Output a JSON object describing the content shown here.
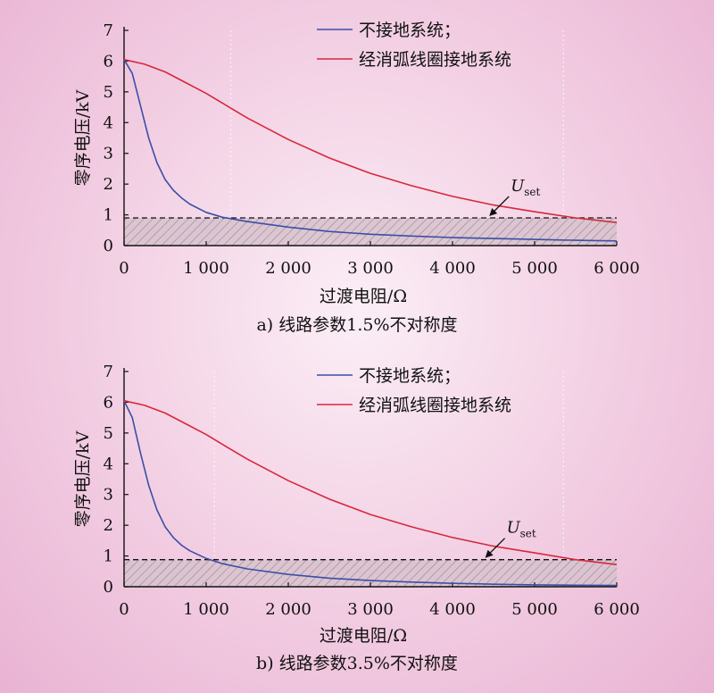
{
  "chart_data": [
    {
      "type": "line",
      "caption": "a) 线路参数1.5%不对称度",
      "xlabel": "过渡电阻/Ω",
      "ylabel": "零序电压/kV",
      "xlim": [
        0,
        6000
      ],
      "ylim": [
        0,
        7
      ],
      "x_ticks": [
        0,
        1000,
        2000,
        3000,
        4000,
        5000,
        6000
      ],
      "x_tick_labels": [
        "0",
        "1 000",
        "2 000",
        "3 000",
        "4 000",
        "5 000",
        "6 000"
      ],
      "y_ticks": [
        0,
        1,
        2,
        3,
        4,
        5,
        6,
        7
      ],
      "threshold": {
        "label": "U",
        "label_sub": "set",
        "value": 0.9,
        "annotation_point": [
          4600,
          1.0
        ]
      },
      "series": [
        {
          "name": "不接地系统；",
          "color": "#3a4fa6",
          "x": [
            0,
            100,
            200,
            300,
            400,
            500,
            600,
            700,
            800,
            1000,
            1200,
            1500,
            2000,
            2500,
            3000,
            3500,
            4000,
            4500,
            5000,
            5500,
            6000
          ],
          "y": [
            6.05,
            5.6,
            4.55,
            3.5,
            2.7,
            2.15,
            1.8,
            1.55,
            1.35,
            1.08,
            0.92,
            0.78,
            0.6,
            0.46,
            0.37,
            0.31,
            0.26,
            0.23,
            0.2,
            0.17,
            0.15
          ]
        },
        {
          "name": "经消弧线圈接地系统",
          "color": "#d6283c",
          "x": [
            0,
            250,
            500,
            750,
            1000,
            1250,
            1500,
            2000,
            2500,
            3000,
            3500,
            4000,
            4500,
            5000,
            5500,
            6000
          ],
          "y": [
            6.05,
            5.9,
            5.65,
            5.3,
            4.95,
            4.55,
            4.15,
            3.45,
            2.85,
            2.35,
            1.95,
            1.6,
            1.32,
            1.1,
            0.9,
            0.75
          ]
        }
      ]
    },
    {
      "type": "line",
      "caption": "b) 线路参数3.5%不对称度",
      "xlabel": "过渡电阻/Ω",
      "ylabel": "零序电压/kV",
      "xlim": [
        0,
        6000
      ],
      "ylim": [
        0,
        7
      ],
      "x_ticks": [
        0,
        1000,
        2000,
        3000,
        4000,
        5000,
        6000
      ],
      "x_tick_labels": [
        "0",
        "1 000",
        "2 000",
        "3 000",
        "4 000",
        "5 000",
        "6 000"
      ],
      "y_ticks": [
        0,
        1,
        2,
        3,
        4,
        5,
        6,
        7
      ],
      "threshold": {
        "label": "U",
        "label_sub": "set",
        "value": 0.88,
        "annotation_point": [
          4550,
          1.0
        ]
      },
      "series": [
        {
          "name": "不接地系统；",
          "color": "#3a4fa6",
          "x": [
            0,
            100,
            200,
            300,
            400,
            500,
            600,
            700,
            800,
            1000,
            1200,
            1500,
            2000,
            2500,
            3000,
            3500,
            4000,
            4500,
            5000,
            5500,
            6000
          ],
          "y": [
            6.05,
            5.5,
            4.35,
            3.3,
            2.5,
            1.95,
            1.6,
            1.35,
            1.17,
            0.92,
            0.75,
            0.58,
            0.4,
            0.28,
            0.2,
            0.15,
            0.11,
            0.08,
            0.06,
            0.05,
            0.04
          ]
        },
        {
          "name": "经消弧线圈接地系统",
          "color": "#d6283c",
          "x": [
            0,
            250,
            500,
            750,
            1000,
            1250,
            1500,
            2000,
            2500,
            3000,
            3500,
            4000,
            4500,
            5000,
            5500,
            6000
          ],
          "y": [
            6.05,
            5.9,
            5.65,
            5.3,
            4.95,
            4.55,
            4.15,
            3.45,
            2.85,
            2.35,
            1.95,
            1.6,
            1.32,
            1.1,
            0.88,
            0.72
          ]
        }
      ]
    }
  ]
}
